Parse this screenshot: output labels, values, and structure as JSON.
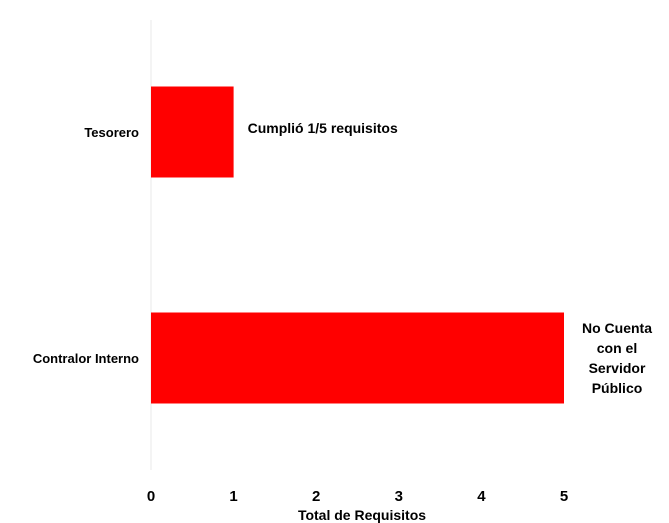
{
  "chart_data": {
    "type": "bar",
    "orientation": "horizontal",
    "categories": [
      "Tesorero",
      "Contralor Interno"
    ],
    "values": [
      1,
      5
    ],
    "xlabel": "Total de Requisitos",
    "ylabel": "",
    "xlim": [
      0,
      5
    ],
    "xticks": [
      "0",
      "1",
      "2",
      "3",
      "4",
      "5"
    ],
    "bar_color": "#ff0000",
    "grid": false,
    "annotations": [
      {
        "category": "Tesorero",
        "lines": [
          "Cumplió 1/5 requisitos"
        ]
      },
      {
        "category": "Contralor Interno",
        "lines": [
          "No Cuenta",
          "con el",
          "Servidor",
          "Público"
        ]
      }
    ]
  }
}
